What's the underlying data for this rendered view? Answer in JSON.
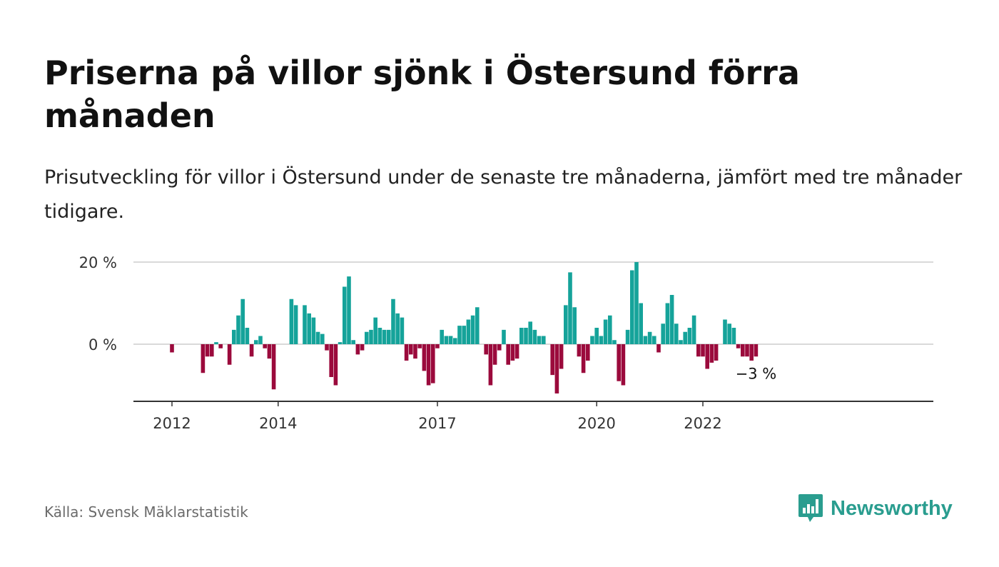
{
  "header": {
    "title": "Priserna på villor sjönk i Östersund förra månaden",
    "subtitle": "Prisutveckling för villor i Östersund under de senaste tre månaderna, jämfört med tre månader tidigare."
  },
  "footer": {
    "source": "Källa: Svensk Mäklarstatistik",
    "brand": "Newsworthy"
  },
  "colors": {
    "positive": "#15a39a",
    "negative": "#9b0a3c",
    "grid": "#d9d9d9",
    "axis": "#333333",
    "brand": "#2a9d8f"
  },
  "chart_data": {
    "type": "bar",
    "title": "Priserna på villor sjönk i Östersund förra månaden",
    "xlabel": "",
    "ylabel": "",
    "ylim": [
      -14,
      20
    ],
    "y_ticks": [
      {
        "value": 0,
        "label": "0 %"
      },
      {
        "value": 20,
        "label": "20 %"
      }
    ],
    "x_ticks": [
      {
        "date": "2012-01",
        "label": "2012"
      },
      {
        "date": "2014-01",
        "label": "2014"
      },
      {
        "date": "2017-01",
        "label": "2017"
      },
      {
        "date": "2020-01",
        "label": "2020"
      },
      {
        "date": "2022-01",
        "label": "2022"
      }
    ],
    "grid": "horizontal",
    "legend": "none",
    "annotation": {
      "label": "−3 %",
      "date": "2023-01"
    },
    "series": [
      {
        "start": "2011-07",
        "values": [
          0,
          0,
          0,
          0,
          0,
          0,
          -2,
          0,
          0,
          0,
          0,
          0,
          0,
          -7,
          -3,
          -3,
          0.5,
          -1,
          0,
          -5,
          3.5,
          7,
          11,
          4,
          -3,
          1,
          2,
          -1,
          -3.5,
          -11,
          0,
          0,
          0,
          11,
          9.5,
          0,
          9.5,
          7.5,
          6.5,
          3,
          2.5,
          -1.5,
          -8,
          -10,
          0.5,
          14,
          16.5,
          1,
          -2.5,
          -1.5,
          3,
          3.5,
          6.5,
          4,
          3.5,
          3.5,
          11,
          7.5,
          6.5,
          -4,
          -2.5,
          -3.5,
          -1,
          -6.5,
          -10,
          -9.5,
          -1,
          3.5,
          2,
          2,
          1.5,
          4.5,
          4.5,
          6,
          7,
          9,
          0,
          -2.5,
          -10,
          -5,
          -1.5,
          3.5,
          -5,
          -4,
          -3.5,
          4,
          4,
          5.5,
          3.5,
          2,
          2,
          0,
          -7.5,
          -12,
          -6,
          9.5,
          17.5,
          9,
          -3,
          -7,
          -4,
          2,
          4,
          2,
          6,
          7,
          1,
          -9,
          -10,
          3.5,
          18,
          20,
          10,
          2,
          3,
          2,
          -2,
          5,
          10,
          12,
          5,
          1,
          3,
          4,
          7,
          -3,
          -3,
          -6,
          -4.5,
          -4,
          0,
          6,
          5,
          4,
          -1,
          -3,
          -3,
          -4,
          -3
        ]
      }
    ]
  }
}
